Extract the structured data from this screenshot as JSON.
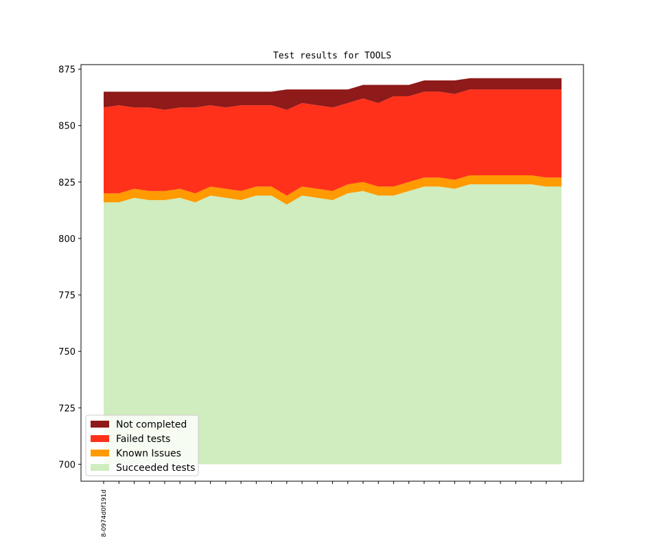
{
  "chart_data": {
    "type": "area",
    "stacked": true,
    "title": "Test results for TOOLS",
    "xlabel": "",
    "ylabel": "",
    "ylim": [
      692.5,
      877
    ],
    "yticks": [
      700,
      725,
      750,
      775,
      800,
      825,
      850,
      875
    ],
    "xtick_labels": [
      "8-0974d0f191d"
    ],
    "baseline": 700,
    "legend_position": "lower-left",
    "grid": false,
    "series": [
      {
        "name": "Succeeded tests",
        "color": "#cfedbf",
        "values": [
          816,
          816,
          818,
          817,
          817,
          818,
          816,
          819,
          818,
          817,
          819,
          819,
          815,
          819,
          818,
          817,
          820,
          821,
          819,
          819,
          821,
          823,
          823,
          822,
          824,
          824,
          824,
          824,
          824,
          823,
          823
        ]
      },
      {
        "name": "Known Issues",
        "color": "#ff9a00",
        "values": [
          820,
          820,
          822,
          821,
          821,
          822,
          820,
          823,
          822,
          821,
          823,
          823,
          819,
          823,
          822,
          821,
          824,
          825,
          823,
          823,
          825,
          827,
          827,
          826,
          828,
          828,
          828,
          828,
          828,
          827,
          827
        ]
      },
      {
        "name": "Failed tests",
        "color": "#ff311b",
        "values": [
          858,
          859,
          858,
          858,
          857,
          858,
          858,
          859,
          858,
          859,
          859,
          859,
          857,
          860,
          859,
          858,
          860,
          862,
          860,
          863,
          863,
          865,
          865,
          864,
          866,
          866,
          866,
          866,
          866,
          866,
          866
        ]
      },
      {
        "name": "Not completed",
        "color": "#8e1a1a",
        "values": [
          865,
          865,
          865,
          865,
          865,
          865,
          865,
          865,
          865,
          865,
          865,
          865,
          866,
          866,
          866,
          866,
          866,
          868,
          868,
          868,
          868,
          870,
          870,
          870,
          871,
          871,
          871,
          871,
          871,
          871,
          871
        ]
      }
    ],
    "legend_order": [
      "Not completed",
      "Failed tests",
      "Known Issues",
      "Succeeded tests"
    ]
  }
}
